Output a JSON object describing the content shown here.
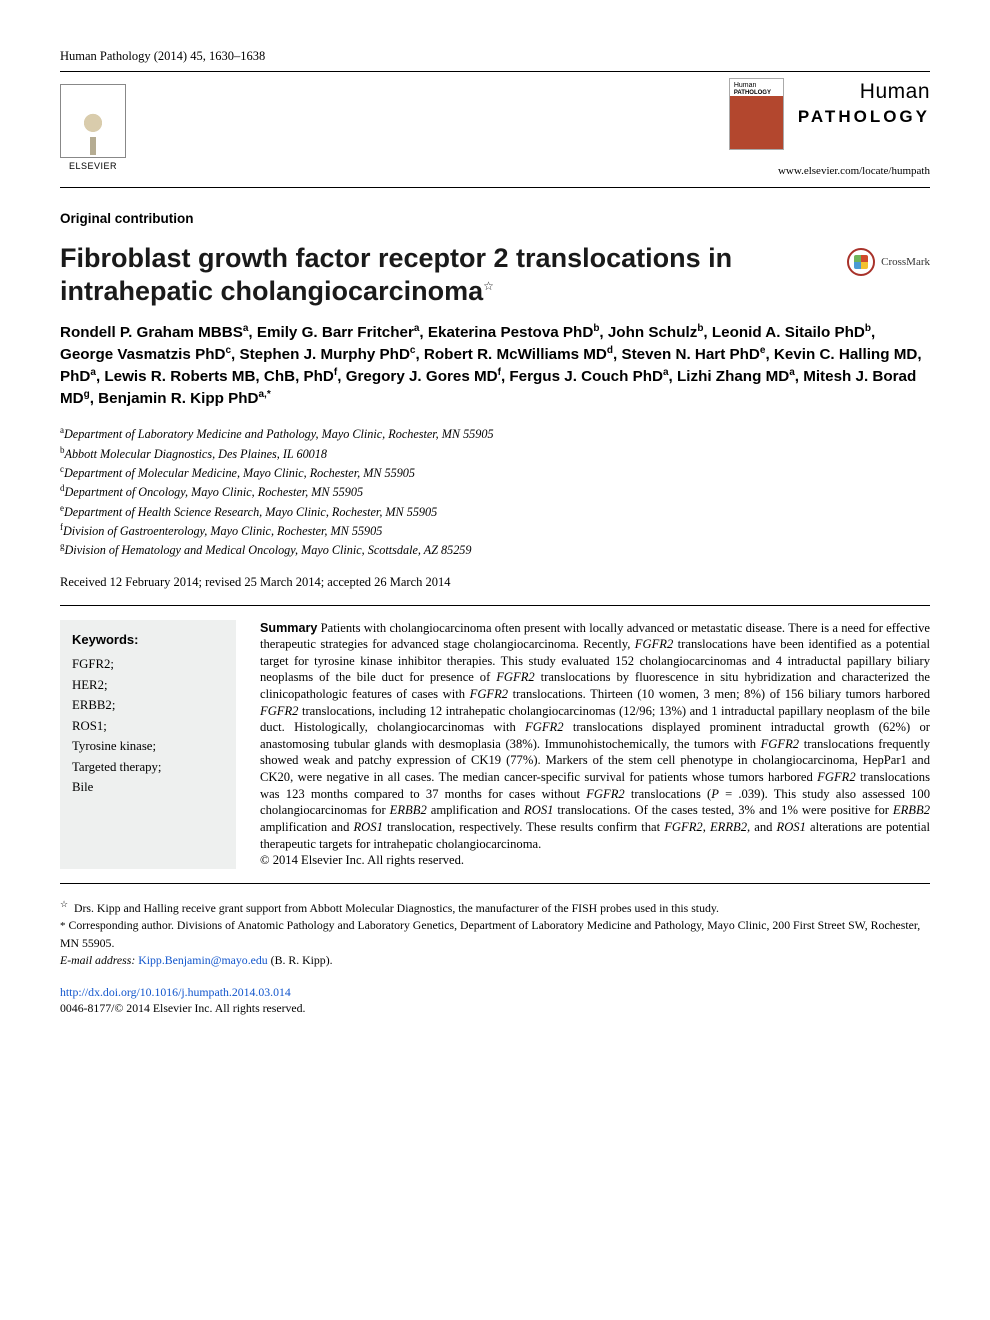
{
  "header": {
    "running_head": "Human Pathology (2014) 45, 1630–1638",
    "journal_name_top": "Human",
    "journal_name_bottom": "PATHOLOGY",
    "journal_site": "www.elsevier.com/locate/humpath",
    "elsevier_label": "ELSEVIER"
  },
  "section_label": "Original contribution",
  "title": "Fibroblast growth factor receptor 2 translocations in intrahepatic cholangiocarcinoma",
  "title_star": "☆",
  "crossmark_label": "CrossMark",
  "authors_html": "Rondell P. Graham MBBS<sup>a</sup>, Emily G. Barr Fritcher<sup>a</sup>, Ekaterina Pestova PhD<sup>b</sup>, John Schulz<sup>b</sup>, Leonid A. Sitailo PhD<sup>b</sup>, George Vasmatzis PhD<sup>c</sup>, Stephen J. Murphy PhD<sup>c</sup>, Robert R. McWilliams MD<sup>d</sup>, Steven N. Hart PhD<sup>e</sup>, Kevin C. Halling MD, PhD<sup>a</sup>, Lewis R. Roberts MB, ChB, PhD<sup>f</sup>, Gregory J. Gores MD<sup>f</sup>, Fergus J. Couch PhD<sup>a</sup>, Lizhi Zhang MD<sup>a</sup>, Mitesh J. Borad MD<sup>g</sup>, Benjamin R. Kipp PhD<sup>a,*</sup>",
  "affiliations": [
    {
      "s": "a",
      "t": "Department of Laboratory Medicine and Pathology, Mayo Clinic, Rochester, MN 55905"
    },
    {
      "s": "b",
      "t": "Abbott Molecular Diagnostics, Des Plaines, IL 60018"
    },
    {
      "s": "c",
      "t": "Department of Molecular Medicine, Mayo Clinic, Rochester, MN 55905"
    },
    {
      "s": "d",
      "t": "Department of Oncology, Mayo Clinic, Rochester, MN 55905"
    },
    {
      "s": "e",
      "t": "Department of Health Science Research, Mayo Clinic, Rochester, MN 55905"
    },
    {
      "s": "f",
      "t": "Division of Gastroenterology, Mayo Clinic, Rochester, MN 55905"
    },
    {
      "s": "g",
      "t": "Division of Hematology and Medical Oncology, Mayo Clinic, Scottsdale, AZ 85259"
    }
  ],
  "dates": "Received 12 February 2014; revised 25 March 2014; accepted 26 March 2014",
  "keywords": {
    "head": "Keywords:",
    "items": [
      "FGFR2;",
      "HER2;",
      "ERBB2;",
      "ROS1;",
      "Tyrosine kinase;",
      "Targeted therapy;",
      "Bile"
    ]
  },
  "summary_label": "Summary",
  "summary_html": "Patients with cholangiocarcinoma often present with locally advanced or metastatic disease. There is a need for effective therapeutic strategies for advanced stage cholangiocarcinoma. Recently, <em>FGFR2</em> translocations have been identified as a potential target for tyrosine kinase inhibitor therapies. This study evaluated 152 cholangiocarcinomas and 4 intraductal papillary biliary neoplasms of the bile duct for presence of <em>FGFR2</em> translocations by fluorescence in situ hybridization and characterized the clinicopathologic features of cases with <em>FGFR2</em> translocations. Thirteen (10 women, 3 men; 8%) of 156 biliary tumors harbored <em>FGFR2</em> translocations, including 12 intrahepatic cholangiocarcinomas (12/96; 13%) and 1 intraductal papillary neoplasm of the bile duct. Histologically, cholangiocarcinomas with <em>FGFR2</em> translocations displayed prominent intraductal growth (62%) or anastomosing tubular glands with desmoplasia (38%). Immunohistochemically, the tumors with <em>FGFR2</em> translocations frequently showed weak and patchy expression of CK19 (77%). Markers of the stem cell phenotype in cholangiocarcinoma, HepPar1 and CK20, were negative in all cases. The median cancer-specific survival for patients whose tumors harbored <em>FGFR2</em> translocations was 123 months compared to 37 months for cases without <em>FGFR2</em> translocations (<em>P</em> = .039). This study also assessed 100 cholangiocarcinomas for <em>ERBB2</em> amplification and <em>ROS1</em> translocations. Of the cases tested, 3% and 1% were positive for <em>ERBB2</em> amplification and <em>ROS1</em> translocation, respectively. These results confirm that <em>FGFR2</em>, <em>ERRB2</em>, and <em>ROS1</em> alterations are potential therapeutic targets for intrahepatic cholangiocarcinoma.",
  "copyright": "© 2014 Elsevier Inc. All rights reserved.",
  "footnotes": {
    "disclosure": "Drs. Kipp and Halling receive grant support from Abbott Molecular Diagnostics, the manufacturer of the FISH probes used in this study.",
    "corresponding": "Corresponding author. Divisions of Anatomic Pathology and Laboratory Genetics, Department of Laboratory Medicine and Pathology, Mayo Clinic, 200 First Street SW, Rochester, MN 55905.",
    "email_label": "E-mail address:",
    "email": "Kipp.Benjamin@mayo.edu",
    "email_name": "(B. R. Kipp)."
  },
  "doi": {
    "url": "http://dx.doi.org/10.1016/j.humpath.2014.03.014",
    "issn_line": "0046-8177/© 2014 Elsevier Inc. All rights reserved."
  },
  "colors": {
    "text": "#000000",
    "link": "#1155cc",
    "kw_bg": "#eef0ef",
    "rule": "#000000"
  },
  "typography": {
    "title_fontsize_pt": 20,
    "authors_fontsize_pt": 11,
    "body_fontsize_pt": 9.5,
    "summary_fontsize_pt": 9.4
  }
}
